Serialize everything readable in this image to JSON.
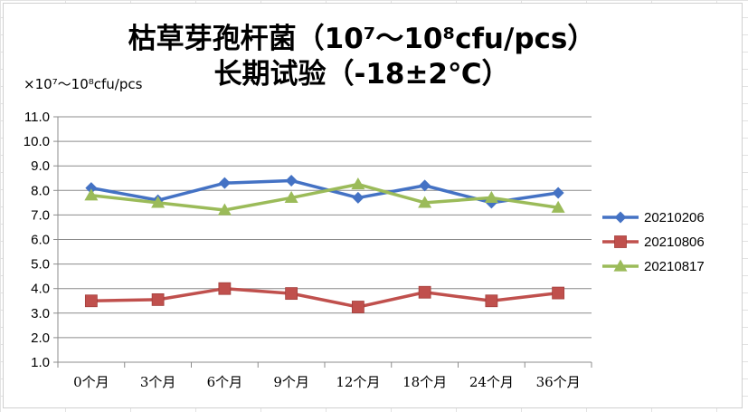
{
  "chart_data": {
    "type": "line",
    "title_lines": [
      "枯草芽孢杆菌（10⁷～10⁸cfu/pcs）",
      "长期试验（-18±2℃）"
    ],
    "ylabel": "×10⁷～10⁸cfu/pcs",
    "xlabel": "",
    "ylim": [
      1.0,
      11.0
    ],
    "ytick_step": 1.0,
    "yticks": [
      "1.0",
      "2.0",
      "3.0",
      "4.0",
      "5.0",
      "6.0",
      "7.0",
      "8.0",
      "9.0",
      "10.0",
      "11.0"
    ],
    "categories": [
      "0个月",
      "3个月",
      "6个月",
      "9个月",
      "12个月",
      "18个月",
      "24个月",
      "36个月"
    ],
    "grid": true,
    "legend_position": "right",
    "series": [
      {
        "name": "20210206",
        "color": "#4472C4",
        "marker": "diamond",
        "values": [
          8.1,
          7.6,
          8.3,
          8.4,
          7.7,
          8.2,
          7.5,
          7.9
        ]
      },
      {
        "name": "20210806",
        "color": "#C0504D",
        "marker": "square",
        "values": [
          3.5,
          3.55,
          4.0,
          3.8,
          3.25,
          3.85,
          3.5,
          3.82
        ]
      },
      {
        "name": "20210817",
        "color": "#9BBB59",
        "marker": "triangle",
        "values": [
          7.8,
          7.5,
          7.2,
          7.7,
          8.25,
          7.5,
          7.7,
          7.3
        ]
      }
    ]
  }
}
